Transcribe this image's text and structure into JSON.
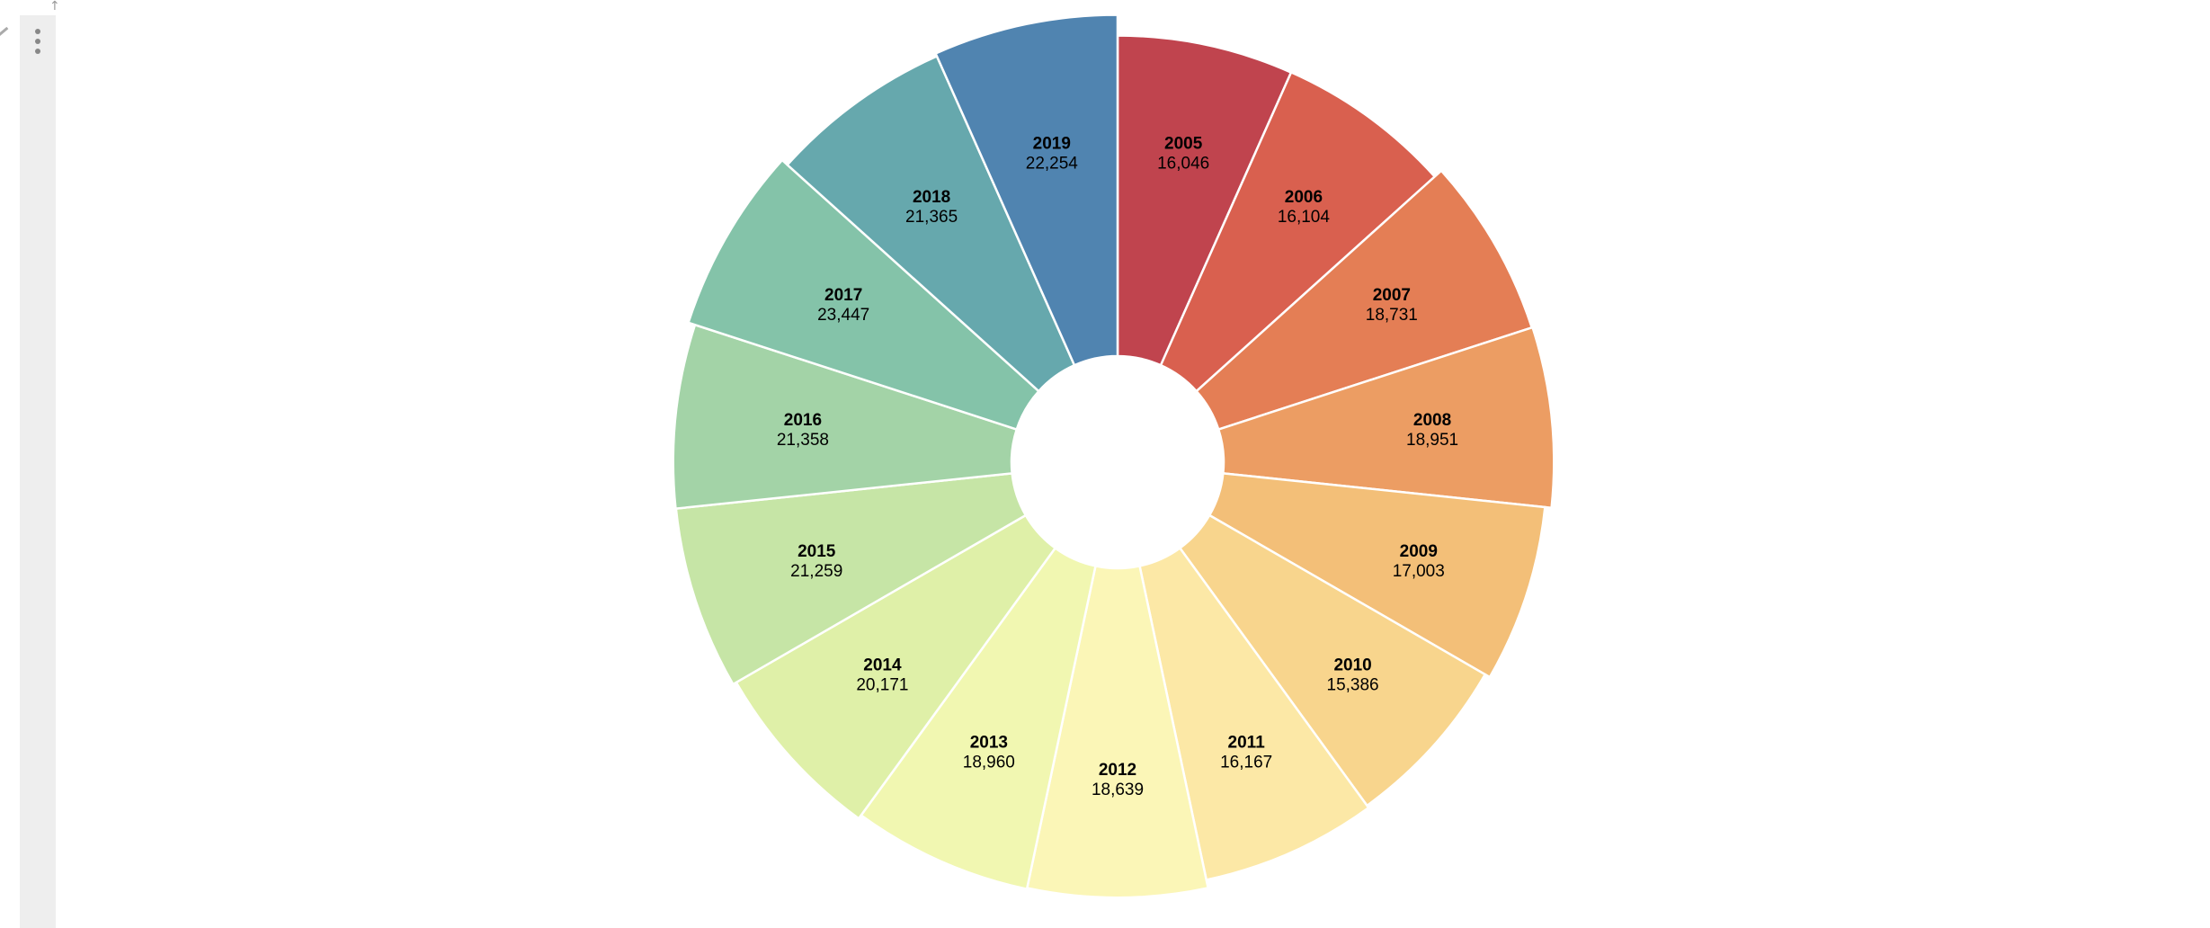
{
  "toolbar": {
    "menu_icon": "kebab-menu-icon",
    "arrow_icon": "arrow-up-icon",
    "edge_icon": "pencil-icon"
  },
  "chart_data": {
    "type": "pie",
    "style": "donut",
    "title": "",
    "categories": [
      "2005",
      "2006",
      "2007",
      "2008",
      "2009",
      "2010",
      "2011",
      "2012",
      "2013",
      "2014",
      "2015",
      "2016",
      "2017",
      "2018",
      "2019"
    ],
    "values": [
      16046,
      16104,
      18731,
      18951,
      17003,
      15386,
      16167,
      18639,
      18960,
      20171,
      21259,
      21358,
      23447,
      21365,
      22254
    ],
    "value_labels": [
      "16,046",
      "16,104",
      "18,731",
      "18,951",
      "17,003",
      "15,386",
      "16,167",
      "18,639",
      "18,960",
      "20,171",
      "21,259",
      "21,358",
      "23,447",
      "21,365",
      "22,254"
    ],
    "colors": [
      "#c0444e",
      "#d9604f",
      "#e47e55",
      "#ec9d63",
      "#f3bf78",
      "#f8d58d",
      "#fce8a6",
      "#fbf6b7",
      "#f1f7b1",
      "#dff0a8",
      "#c6e5a6",
      "#a3d3a7",
      "#84c3a9",
      "#66a8ad",
      "#5084b0"
    ],
    "legend": "none"
  }
}
